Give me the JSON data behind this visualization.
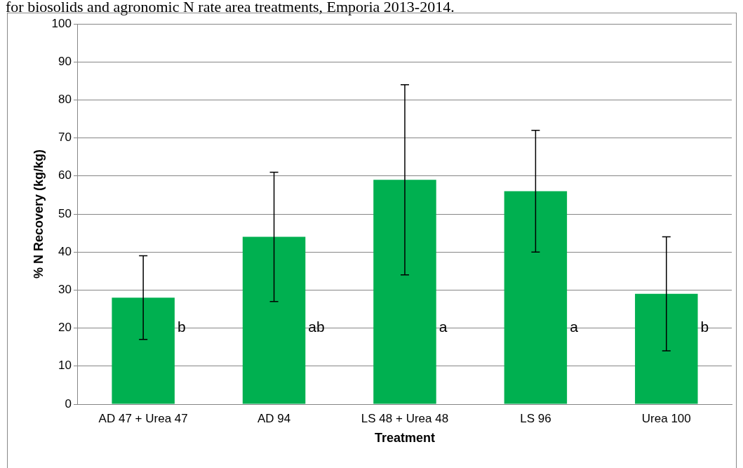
{
  "chart_data": {
    "type": "bar",
    "title": "for biosolids and agronomic N rate area treatments, Emporia 2013-2014.",
    "xlabel": "Treatment",
    "ylabel": "% N Recovery (kg/kg)",
    "categories": [
      "AD 47 + Urea 47",
      "AD 94",
      "LS 48 + Urea 48",
      "LS 96",
      "Urea 100"
    ],
    "values": [
      28,
      44,
      59,
      56,
      29
    ],
    "color": "#00b050",
    "errors": [
      [
        17,
        39
      ],
      [
        27,
        61
      ],
      [
        34,
        84
      ],
      [
        40,
        72
      ],
      [
        14,
        44
      ]
    ],
    "ylim": [
      0,
      100
    ],
    "yticks": [
      0,
      10,
      20,
      30,
      40,
      50,
      60,
      70,
      80,
      90,
      100
    ],
    "grid": "y",
    "legend": false,
    "annotations": [
      "b",
      "ab",
      "a",
      "a",
      "b"
    ]
  }
}
